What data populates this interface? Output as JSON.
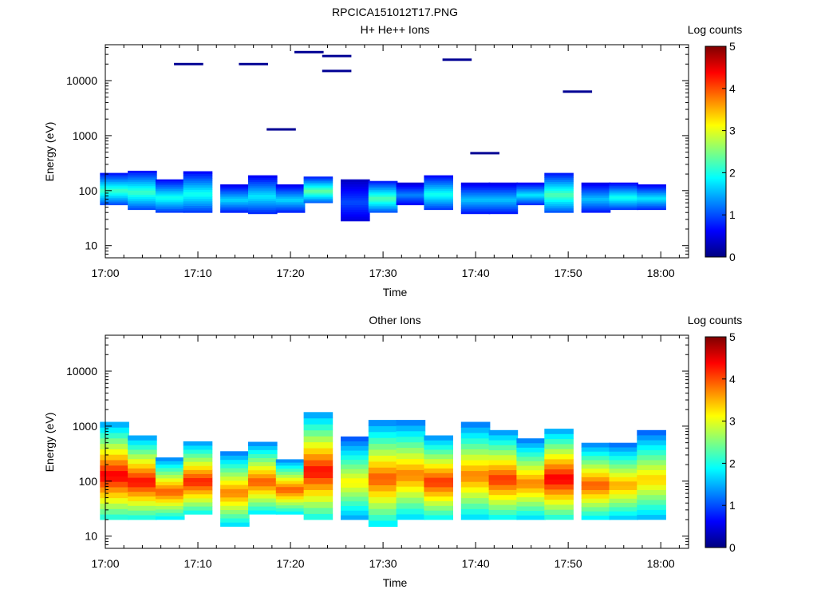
{
  "figure_title": "RPCICA151012T17.PNG",
  "chart_data": [
    {
      "type": "heatmap",
      "title": "H+ He++ Ions",
      "xlabel": "Time",
      "ylabel": "Energy (eV)",
      "x_ticks": [
        "17:00",
        "17:10",
        "17:20",
        "17:30",
        "17:40",
        "17:50",
        "18:00"
      ],
      "x_range": [
        "17:00",
        "18:03"
      ],
      "y_scale": "log",
      "y_range": [
        6,
        45000
      ],
      "y_ticks": [
        "10",
        "100",
        "1000",
        "10000"
      ],
      "colorbar": {
        "label": "Log counts",
        "range": [
          0,
          5
        ],
        "ticks": [
          "0",
          "1",
          "2",
          "3",
          "4",
          "5"
        ],
        "colormap": "jet"
      },
      "time_bins": [
        "17:01",
        "17:04",
        "17:07",
        "17:10",
        "17:14",
        "17:17",
        "17:20",
        "17:23",
        "17:27",
        "17:30",
        "17:33",
        "17:36",
        "17:40",
        "17:43",
        "17:46",
        "17:49",
        "17:53",
        "17:56",
        "17:59"
      ],
      "band_low_eV": [
        55,
        45,
        40,
        40,
        40,
        38,
        40,
        60,
        28,
        40,
        55,
        45,
        38,
        38,
        55,
        40,
        40,
        45,
        45
      ],
      "band_high_eV": [
        210,
        230,
        160,
        225,
        130,
        190,
        130,
        180,
        160,
        150,
        140,
        190,
        140,
        140,
        140,
        210,
        140,
        140,
        130
      ],
      "band_peak_log_counts": [
        2.2,
        2.2,
        2.0,
        2.0,
        1.7,
        1.8,
        1.7,
        2.4,
        1.0,
        2.3,
        1.3,
        2.0,
        1.6,
        1.6,
        1.8,
        2.3,
        1.6,
        2.0,
        1.8
      ],
      "isolated_counts": [
        {
          "time": "17:09",
          "energy_eV": 20000,
          "log_counts": 0.1
        },
        {
          "time": "17:16",
          "energy_eV": 20000,
          "log_counts": 0.1
        },
        {
          "time": "17:19",
          "energy_eV": 1300,
          "log_counts": 0.1
        },
        {
          "time": "17:22",
          "energy_eV": 33000,
          "log_counts": 0.1
        },
        {
          "time": "17:25",
          "energy_eV": 28000,
          "log_counts": 0.1
        },
        {
          "time": "17:25",
          "energy_eV": 15000,
          "log_counts": 0.1
        },
        {
          "time": "17:38",
          "energy_eV": 24000,
          "log_counts": 0.1
        },
        {
          "time": "17:41",
          "energy_eV": 480,
          "log_counts": 0.1
        },
        {
          "time": "17:51",
          "energy_eV": 6300,
          "log_counts": 0.1
        }
      ]
    },
    {
      "type": "heatmap",
      "title": "Other Ions",
      "xlabel": "Time",
      "ylabel": "Energy (eV)",
      "x_ticks": [
        "17:00",
        "17:10",
        "17:20",
        "17:30",
        "17:40",
        "17:50",
        "18:00"
      ],
      "x_range": [
        "17:00",
        "18:03"
      ],
      "y_scale": "log",
      "y_range": [
        6,
        45000
      ],
      "y_ticks": [
        "10",
        "100",
        "1000",
        "10000"
      ],
      "colorbar": {
        "label": "Log counts",
        "range": [
          0,
          5
        ],
        "ticks": [
          "0",
          "1",
          "2",
          "3",
          "4",
          "5"
        ],
        "colormap": "jet"
      },
      "time_bins": [
        "17:01",
        "17:04",
        "17:07",
        "17:10",
        "17:14",
        "17:17",
        "17:20",
        "17:23",
        "17:27",
        "17:30",
        "17:33",
        "17:36",
        "17:40",
        "17:43",
        "17:46",
        "17:49",
        "17:53",
        "17:56",
        "17:59"
      ],
      "band_low_eV": [
        20,
        20,
        20,
        25,
        15,
        25,
        25,
        20,
        20,
        15,
        20,
        20,
        20,
        20,
        20,
        20,
        20,
        20,
        20
      ],
      "band_high_eV": [
        1200,
        680,
        270,
        530,
        350,
        520,
        250,
        1800,
        650,
        1300,
        1300,
        680,
        1200,
        850,
        600,
        900,
        500,
        500,
        850
      ],
      "band_peak_log_counts": [
        4.5,
        4.4,
        4.0,
        4.3,
        3.8,
        4.0,
        4.0,
        4.4,
        3.2,
        4.0,
        3.8,
        4.2,
        3.8,
        4.2,
        3.8,
        4.5,
        4.0,
        3.6,
        3.4
      ]
    }
  ]
}
